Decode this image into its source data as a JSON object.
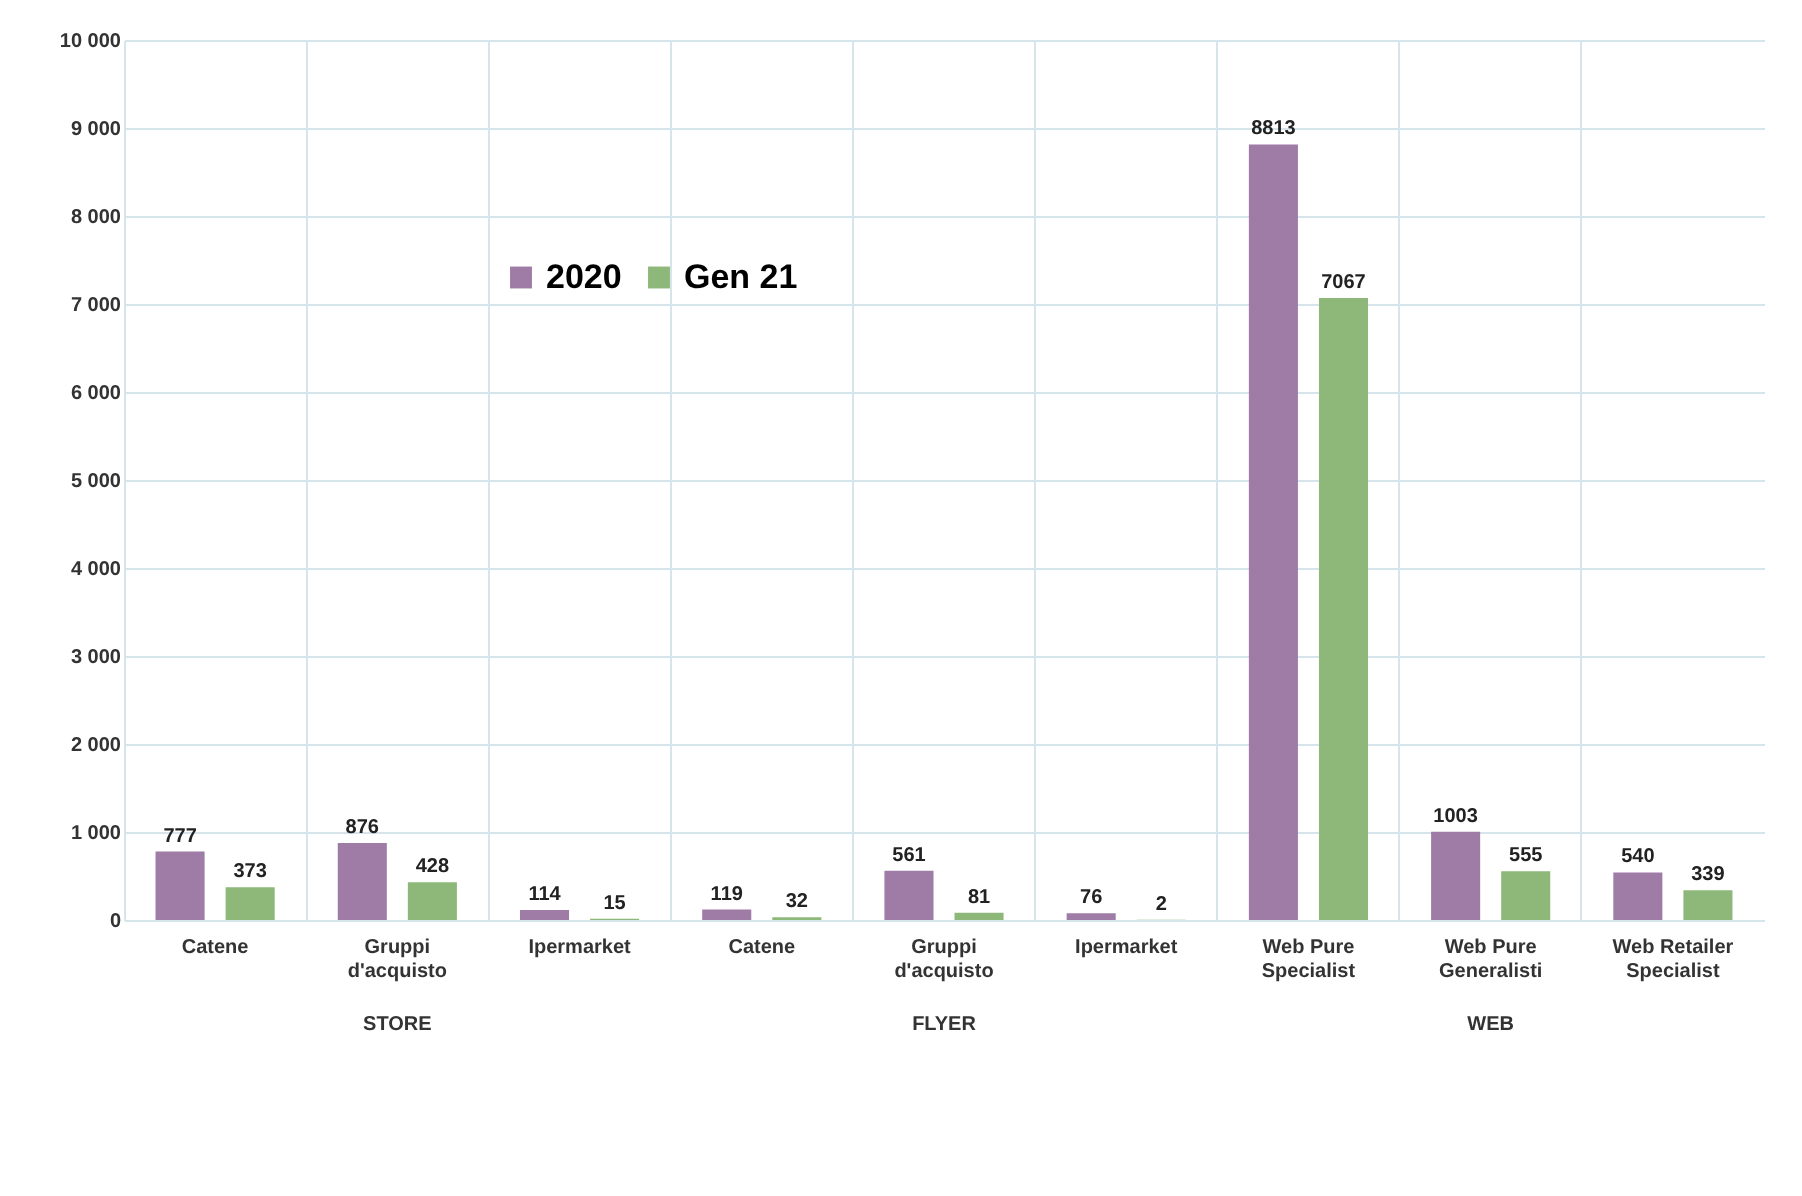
{
  "chart_data": {
    "type": "bar",
    "categories": [
      "Catene",
      "Gruppi d'acquisto",
      "Ipermarket",
      "Catene",
      "Gruppi d'acquisto",
      "Ipermarket",
      "Web Pure Specialist",
      "Web Pure Generalisti",
      "Web Retailer Specialist"
    ],
    "series": [
      {
        "name": "2020",
        "color": "#9e7ca6",
        "values": [
          777,
          876,
          114,
          119,
          561,
          76,
          8813,
          1003,
          540
        ]
      },
      {
        "name": "Gen 21",
        "color": "#8db87a",
        "values": [
          373,
          428,
          15,
          32,
          81,
          2,
          7067,
          555,
          339
        ]
      }
    ],
    "ylim": [
      0,
      10000
    ],
    "yticks": [
      0,
      {
        "value": 1000,
        "label": "1 000"
      },
      {
        "value": 2000,
        "label": "2 000"
      },
      {
        "value": 3000,
        "label": "3 000"
      },
      {
        "value": 4000,
        "label": "4 000"
      },
      {
        "value": 5000,
        "label": "5 000"
      },
      {
        "value": 6000,
        "label": "6 000"
      },
      {
        "value": 7000,
        "label": "7 000"
      },
      {
        "value": 8000,
        "label": "8 000"
      },
      {
        "value": 9000,
        "label": "9 000"
      },
      {
        "value": 10000,
        "label": "10 000"
      }
    ],
    "annotations": [
      "STORE",
      "FLYER",
      "WEB"
    ],
    "data_labels": true,
    "grid": true,
    "legend": "top left"
  }
}
